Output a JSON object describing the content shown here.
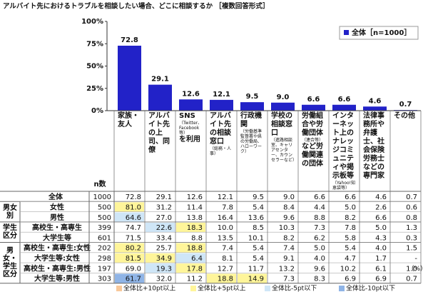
{
  "title": "アルバイト先におけるトラブルを相談したい場合、どこに相談するか ［複数回答形式］",
  "chart_data": {
    "type": "bar",
    "categories": [
      "家族・友人",
      "アルバイト先の上司、同僚",
      "SNS",
      "アルバイト先の相談窓口",
      "行政機関",
      "学校の相談窓口",
      "労働組合や労働団体",
      "インターネット上のナレッジコミュニティや掲示板等",
      "法律事務所や弁護士、社会保険労務士などの専門家",
      "その他"
    ],
    "category_notes": [
      null,
      null,
      "（Twitter、Facebook等）",
      "（総務・人事）",
      "（労働基準監督署や県の労働局、ハローワーク）",
      "（進路相談室、キャリアセンター、カウンセラーなど）",
      "（連合等）",
      "（Yahoo!知恵袋等）",
      null,
      null
    ],
    "category_tails": [
      null,
      null,
      "を利用",
      null,
      null,
      null,
      "など労働関連の団体",
      null,
      null,
      null
    ],
    "series": [
      {
        "name": "全体［n=1000］",
        "color": "#2222c8",
        "values": [
          72.8,
          29.1,
          12.6,
          12.1,
          9.5,
          9.0,
          6.6,
          6.6,
          4.6,
          0.7
        ],
        "value_labels": [
          "72.8",
          "29.1",
          "12.6",
          "12.1",
          "9.5",
          "9.0",
          "6.6",
          "6.6",
          "4.6",
          "0.7"
        ]
      }
    ],
    "ylim": [
      0,
      100
    ],
    "yticks": [
      {
        "value": 0,
        "label": "0%"
      },
      {
        "value": 25,
        "label": "25%"
      },
      {
        "value": 50,
        "label": "50%"
      },
      {
        "value": 75,
        "label": "75%"
      },
      {
        "value": 100,
        "label": "100%"
      }
    ],
    "legend": "upper right"
  },
  "table": {
    "n_header": "n数",
    "unit": "（%）",
    "sections": [
      {
        "label": null,
        "rows": [
          {
            "label": "全体",
            "n": "1000",
            "cells": [
              "72.8",
              "29.1",
              "12.6",
              "12.1",
              "9.5",
              "9.0",
              "6.6",
              "6.6",
              "4.6",
              "0.7"
            ],
            "highlight": [
              null,
              null,
              null,
              null,
              null,
              null,
              null,
              null,
              null,
              null
            ]
          }
        ]
      },
      {
        "label": "男女別",
        "rows": [
          {
            "label": "女性",
            "n": "500",
            "cells": [
              "81.0",
              "31.2",
              "11.4",
              "7.8",
              "5.4",
              "8.4",
              "4.4",
              "5.0",
              "2.6",
              "0.6"
            ],
            "highlight": [
              "#fff59a",
              null,
              null,
              null,
              null,
              null,
              null,
              null,
              null,
              null
            ]
          },
          {
            "label": "男性",
            "n": "500",
            "cells": [
              "64.6",
              "27.0",
              "13.8",
              "16.4",
              "13.6",
              "9.6",
              "8.8",
              "8.2",
              "6.6",
              "0.8"
            ],
            "highlight": [
              "#cfe6f7",
              null,
              null,
              null,
              null,
              null,
              null,
              null,
              null,
              null
            ]
          }
        ]
      },
      {
        "label": "学生区分",
        "rows": [
          {
            "label": "高校生・高専生",
            "n": "399",
            "cells": [
              "74.7",
              "22.6",
              "18.3",
              "10.0",
              "8.5",
              "10.3",
              "7.3",
              "7.8",
              "5.0",
              "1.3"
            ],
            "highlight": [
              null,
              "#cfe6f7",
              "#fff59a",
              null,
              null,
              null,
              null,
              null,
              null,
              null
            ]
          },
          {
            "label": "大学生等",
            "n": "601",
            "cells": [
              "71.5",
              "33.4",
              "8.8",
              "13.5",
              "10.1",
              "8.2",
              "6.2",
              "5.8",
              "4.3",
              "0.3"
            ],
            "highlight": [
              null,
              null,
              null,
              null,
              null,
              null,
              null,
              null,
              null,
              null
            ]
          }
        ]
      },
      {
        "label": "男女・学生区分",
        "rows": [
          {
            "label": "高校生・高専生:女性",
            "n": "202",
            "cells": [
              "80.2",
              "25.7",
              "18.8",
              "7.4",
              "5.4",
              "7.4",
              "5.0",
              "5.4",
              "4.0",
              "1.5"
            ],
            "highlight": [
              "#fff59a",
              null,
              "#fff59a",
              null,
              null,
              null,
              null,
              null,
              null,
              null
            ]
          },
          {
            "label": "大学生等:女性",
            "n": "298",
            "cells": [
              "81.5",
              "34.9",
              "6.4",
              "8.1",
              "5.4",
              "9.1",
              "4.0",
              "4.7",
              "1.7",
              "-"
            ],
            "highlight": [
              "#fff59a",
              "#fff59a",
              "#cfe6f7",
              null,
              null,
              null,
              null,
              null,
              null,
              null
            ]
          },
          {
            "label": "高校生・高専生:男性",
            "n": "197",
            "cells": [
              "69.0",
              "19.3",
              "17.8",
              "12.7",
              "11.7",
              "13.2",
              "9.6",
              "10.2",
              "6.1",
              "1.0"
            ],
            "highlight": [
              null,
              "#cfe6f7",
              "#fff59a",
              null,
              null,
              null,
              null,
              null,
              null,
              null
            ]
          },
          {
            "label": "大学生等:男性",
            "n": "303",
            "cells": [
              "61.7",
              "32.0",
              "11.2",
              "18.8",
              "14.9",
              "7.3",
              "8.3",
              "6.9",
              "6.9",
              "0.7"
            ],
            "highlight": [
              "#8fb4e6",
              null,
              null,
              "#fff59a",
              "#fff59a",
              null,
              null,
              null,
              null,
              null
            ]
          }
        ]
      }
    ],
    "legend": [
      {
        "label": "全体比+10pt以上",
        "color": "#f8c89a"
      },
      {
        "label": "全体比+5pt以上",
        "color": "#fff59a"
      },
      {
        "label": "全体比-5pt以下",
        "color": "#cfe6f7"
      },
      {
        "label": "全体比-10pt以下",
        "color": "#8fb4e6"
      }
    ]
  }
}
